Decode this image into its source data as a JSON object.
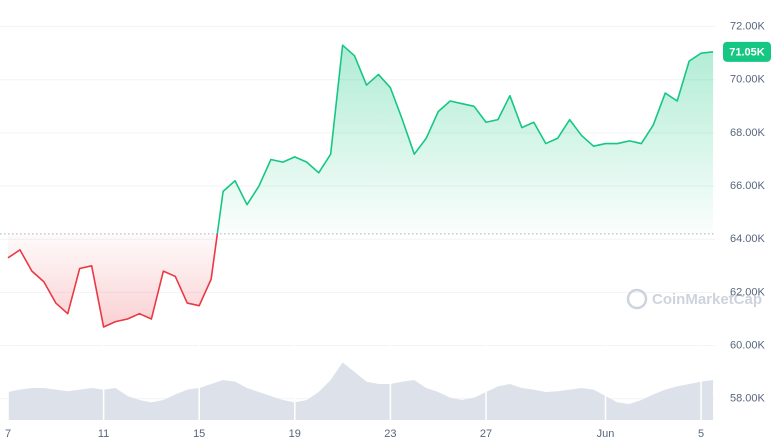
{
  "chart_data": {
    "type": "line",
    "x": [
      "7",
      null,
      null,
      null,
      null,
      null,
      null,
      null,
      "11",
      null,
      null,
      null,
      null,
      null,
      null,
      null,
      "15",
      null,
      null,
      null,
      null,
      null,
      null,
      null,
      "19",
      null,
      null,
      null,
      null,
      null,
      null,
      null,
      "23",
      null,
      null,
      null,
      null,
      null,
      null,
      null,
      "27",
      null,
      null,
      null,
      null,
      null,
      null,
      null,
      null,
      null,
      "Jun",
      null,
      null,
      null,
      null,
      null,
      null,
      null,
      "5",
      null
    ],
    "series": [
      {
        "color": "#16c784",
        "down_color": "#ea3943",
        "values": [
          63.3,
          63.6,
          62.8,
          62.4,
          61.6,
          61.2,
          62.9,
          63.0,
          60.7,
          60.9,
          61.0,
          61.2,
          61.0,
          62.8,
          62.6,
          61.6,
          61.5,
          62.5,
          65.8,
          66.2,
          65.3,
          66.0,
          67.0,
          66.9,
          67.1,
          66.9,
          66.5,
          67.2,
          71.3,
          70.9,
          69.8,
          70.2,
          69.7,
          68.5,
          67.2,
          67.8,
          68.8,
          69.2,
          69.1,
          69.0,
          68.4,
          68.5,
          69.4,
          68.2,
          68.4,
          67.6,
          67.8,
          68.5,
          67.9,
          67.5,
          67.6,
          67.6,
          67.7,
          67.6,
          68.3,
          69.5,
          69.2,
          70.7,
          71.0,
          71.05
        ]
      },
      {
        "color": "#dde2ea",
        "axis": "y2",
        "values": [
          35,
          38,
          40,
          40,
          38,
          36,
          38,
          40,
          38,
          40,
          30,
          25,
          22,
          25,
          32,
          38,
          40,
          45,
          50,
          48,
          40,
          35,
          30,
          25,
          22,
          25,
          35,
          50,
          72,
          60,
          48,
          45,
          45,
          48,
          50,
          40,
          35,
          28,
          25,
          28,
          35,
          42,
          45,
          40,
          38,
          35,
          36,
          38,
          40,
          38,
          30,
          22,
          20,
          25,
          32,
          38,
          42,
          45,
          48,
          50
        ]
      }
    ],
    "baseline": 64.2,
    "current_label": "71.05K",
    "watermark": "CoinMarketCap",
    "ylim": [
      57.2,
      73
    ],
    "yticks": [
      {
        "value": 72,
        "label": "72.00K"
      },
      {
        "value": 70,
        "label": "70.00K"
      },
      {
        "value": 68,
        "label": "68.00K"
      },
      {
        "value": 66,
        "label": "66.00K"
      },
      {
        "value": 64,
        "label": "64.00K"
      },
      {
        "value": 62,
        "label": "62.00K"
      },
      {
        "value": 60,
        "label": "60.00K"
      },
      {
        "value": 58,
        "label": "58.00K"
      }
    ],
    "y2lim": [
      0,
      100
    ],
    "grid": true
  }
}
